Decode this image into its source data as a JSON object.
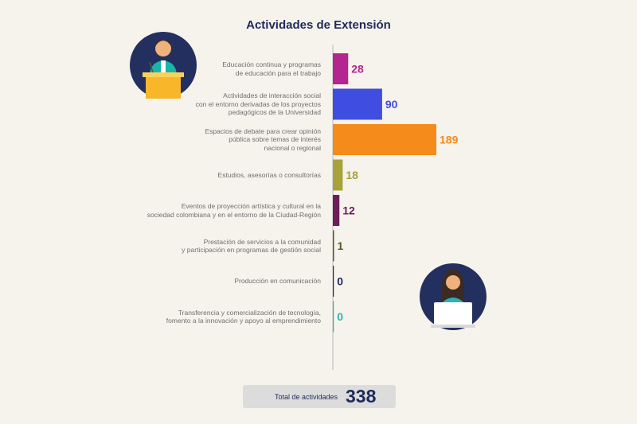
{
  "chart_data": {
    "type": "bar",
    "orientation": "horizontal",
    "title": "Actividades de Extensión",
    "categories": [
      "Educación continua y programas de educación para el trabajo",
      "Actividades de interacción social con el entorno derivadas de los proyectos pedagógicos de la Universidad",
      "Espacios de debate para crear opinión pública sobre temas de interés nacional o regional",
      "Estudios, asesorías o consultorías",
      "Eventos de proyección artística y cultural en la sociedad colombiana y en el entorno de la Ciudad-Región",
      "Prestación de servicios a la comunidad y participación en programas de gestión social",
      "Producción en comunicación",
      "Transferencia y comercialización de tecnología, fomento a la innovación y apoyo al emprendimiento"
    ],
    "label_lines": [
      [
        "Educación continua y programas",
        "de educación para el trabajo"
      ],
      [
        "Actividades de interacción social",
        "con el entorno derivadas de los proyectos",
        "pedagógicos de la Universidad"
      ],
      [
        "Espacios de debate para crear opinión",
        "pública sobre temas de interés",
        "nacional o regional"
      ],
      [
        "Estudios, asesorías o consultorías"
      ],
      [
        "Eventos de proyección artística y cultural en la",
        "sociedad colombiana y en el entorno de la Ciudad-Región"
      ],
      [
        "Prestación de servicios a la comunidad",
        "y participación en programas de gestión social"
      ],
      [
        "Producción en comunicación"
      ],
      [
        "Transferencia y comercialización de tecnología,",
        "fomento a la innovación y apoyo al emprendimiento"
      ]
    ],
    "values": [
      28,
      90,
      189,
      18,
      12,
      1,
      0,
      0
    ],
    "colors": [
      "#b5258f",
      "#3f4ee0",
      "#f58b1a",
      "#a7a23b",
      "#6d1d5a",
      "#54591f",
      "#1f2a5a",
      "#2ab2b5"
    ],
    "xlim": [
      0,
      189
    ],
    "grid": false,
    "legend": "none"
  },
  "total": {
    "label": "Total de actividades",
    "value": "338"
  },
  "icons": [
    "speaker-at-podium-icon",
    "woman-at-laptop-icon"
  ]
}
